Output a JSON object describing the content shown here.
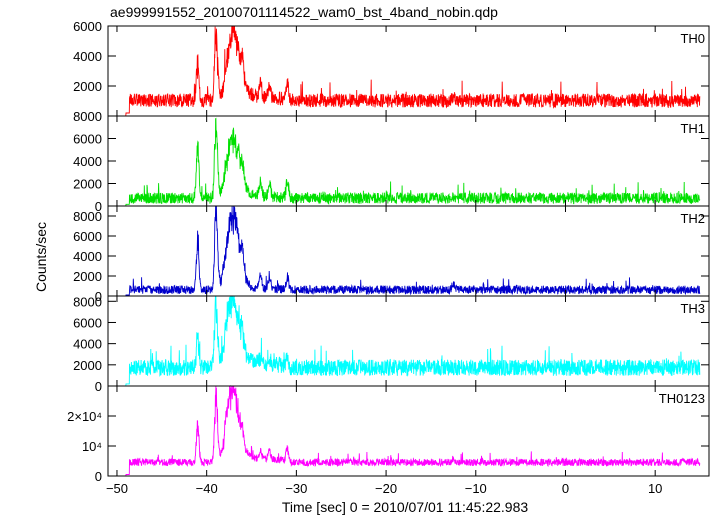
{
  "figure": {
    "title": "ae999991552_20100701114522_wam0_bst_4band_nobin.qdp",
    "ylabel": "Counts/sec",
    "xlabel": "Time [sec] 0 = 2010/07/01 11:45:22.983"
  },
  "chart_data": {
    "type": "line",
    "title": "ae999991552_20100701114522_wam0_bst_4band_nobin.qdp",
    "xlabel": "Time [sec] 0 = 2010/07/01 11:45:22.983",
    "ylabel": "Counts/sec",
    "xlim": [
      -51,
      16
    ],
    "xticks": [
      -50,
      -40,
      -30,
      -20,
      -10,
      0,
      10
    ],
    "xtick_labels": [
      "−50",
      "−40",
      "−30",
      "−20",
      "−10",
      "0",
      "10"
    ],
    "grid": false,
    "legend": "none",
    "series": [
      {
        "name": "TH0",
        "color": "#ff0000",
        "ylim": [
          0,
          6000
        ],
        "yticks": [
          2000,
          4000,
          6000
        ],
        "ytick_labels": [
          "2000",
          "4000",
          "6000"
        ],
        "baseline": 900,
        "noise": 420,
        "pre_level": 200,
        "peaks": [
          [
            -41.0,
            3200
          ],
          [
            -39.0,
            5000
          ],
          [
            -38.8,
            2000
          ],
          [
            -37.2,
            3300
          ],
          [
            -36.6,
            2200
          ],
          [
            -36.0,
            1400
          ],
          [
            -34.0,
            1100
          ],
          [
            -33.0,
            1100
          ],
          [
            -31.0,
            1200
          ],
          [
            -12.5,
            300
          ]
        ]
      },
      {
        "name": "TH1",
        "color": "#00e000",
        "ylim": [
          0,
          8000
        ],
        "yticks": [
          0,
          2000,
          4000,
          6000,
          8000
        ],
        "ytick_labels": [
          "0",
          "2000",
          "4000",
          "6000",
          "8000"
        ],
        "baseline": 550,
        "noise": 450,
        "pre_level": 150,
        "peaks": [
          [
            -41.0,
            5600
          ],
          [
            -39.0,
            6900
          ],
          [
            -38.8,
            2500
          ],
          [
            -37.3,
            4300
          ],
          [
            -36.6,
            3200
          ],
          [
            -36.0,
            1700
          ],
          [
            -34.0,
            1800
          ],
          [
            -33.0,
            1500
          ],
          [
            -31.0,
            1800
          ]
        ]
      },
      {
        "name": "TH2",
        "color": "#0000cc",
        "ylim": [
          0,
          9000
        ],
        "yticks": [
          0,
          2000,
          4000,
          6000,
          8000
        ],
        "ytick_labels": [
          "0",
          "2000",
          "4000",
          "6000",
          "8000"
        ],
        "baseline": 500,
        "noise": 380,
        "pre_level": 100,
        "peaks": [
          [
            -41.0,
            7000
          ],
          [
            -39.0,
            8500
          ],
          [
            -38.8,
            3000
          ],
          [
            -37.3,
            6500
          ],
          [
            -36.6,
            4000
          ],
          [
            -36.0,
            2000
          ],
          [
            -34.0,
            1500
          ],
          [
            -33.0,
            1500
          ],
          [
            -31.0,
            1500
          ],
          [
            -12.5,
            600
          ]
        ]
      },
      {
        "name": "TH3",
        "color": "#00ffff",
        "ylim": [
          0,
          8500
        ],
        "yticks": [
          0,
          2000,
          4000,
          6000,
          8000
        ],
        "ytick_labels": [
          "0",
          "2000",
          "4000",
          "6000",
          "8000"
        ],
        "baseline": 1500,
        "noise": 700,
        "pre_level": 200,
        "peaks": [
          [
            -41.0,
            3800
          ],
          [
            -39.0,
            6500
          ],
          [
            -38.8,
            2200
          ],
          [
            -37.3,
            5200
          ],
          [
            -36.6,
            2800
          ],
          [
            -36.0,
            1500
          ],
          [
            -34.0,
            700
          ],
          [
            -33.0,
            700
          ],
          [
            -31.0,
            800
          ]
        ]
      },
      {
        "name": "TH0123",
        "color": "#ff00ff",
        "ylim": [
          0,
          30000
        ],
        "yticks": [
          0,
          10000,
          20000
        ],
        "ytick_labels": [
          "0",
          "10⁴",
          "2×10⁴"
        ],
        "baseline": 4200,
        "noise": 1100,
        "pre_level": 500,
        "peaks": [
          [
            -41.0,
            16000
          ],
          [
            -39.0,
            25000
          ],
          [
            -38.8,
            9000
          ],
          [
            -37.3,
            19000
          ],
          [
            -36.6,
            11000
          ],
          [
            -36.0,
            5000
          ],
          [
            -34.0,
            4000
          ],
          [
            -33.0,
            4000
          ],
          [
            -31.0,
            5500
          ],
          [
            -12.5,
            1500
          ]
        ]
      }
    ]
  }
}
